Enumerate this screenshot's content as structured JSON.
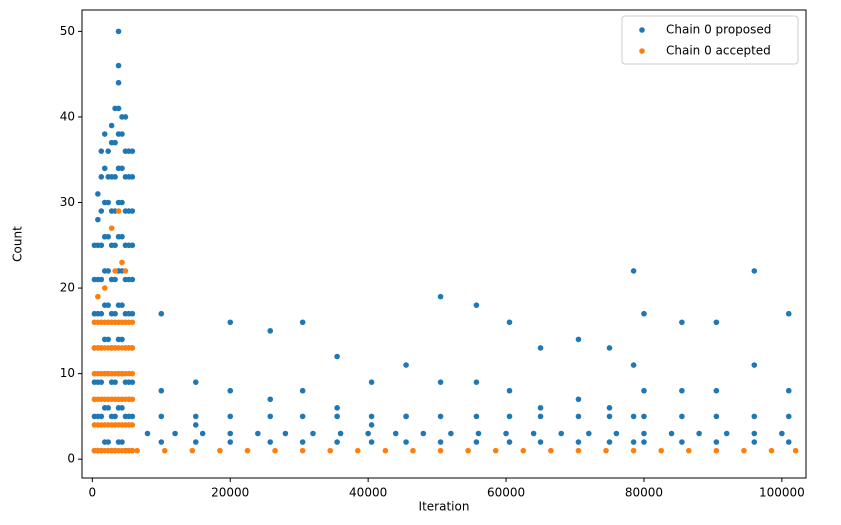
{
  "chart_data": {
    "type": "scatter",
    "xlabel": "Iteration",
    "ylabel": "Count",
    "xlim": [
      -1500,
      103500
    ],
    "ylim": [
      -2.2,
      52.5
    ],
    "xticks": [
      0,
      20000,
      40000,
      60000,
      80000,
      100000
    ],
    "yticks": [
      0,
      10,
      20,
      30,
      40,
      50
    ],
    "legend": "upper right",
    "series": [
      {
        "name": "Chain 0 proposed",
        "color": "#1f77b4",
        "x": [
          300,
          300,
          300,
          300,
          300,
          300,
          300,
          800,
          800,
          800,
          800,
          800,
          800,
          800,
          800,
          800,
          1300,
          1300,
          1300,
          1300,
          1300,
          1300,
          1300,
          1300,
          1300,
          1300,
          1800,
          1800,
          1800,
          1800,
          1800,
          1800,
          1800,
          1800,
          1800,
          1800,
          2300,
          2300,
          2300,
          2300,
          2300,
          2300,
          2300,
          2300,
          2300,
          2300,
          2800,
          2800,
          2800,
          2800,
          2800,
          2800,
          2800,
          2800,
          2800,
          2800,
          2800,
          3300,
          3300,
          3300,
          3300,
          3300,
          3300,
          3300,
          3300,
          3300,
          3300,
          3300,
          3800,
          3800,
          3800,
          3800,
          3800,
          3800,
          3800,
          3800,
          3800,
          3800,
          3800,
          3800,
          3800,
          3800,
          4300,
          4300,
          4300,
          4300,
          4300,
          4300,
          4300,
          4300,
          4300,
          4300,
          4300,
          4800,
          4800,
          4800,
          4800,
          4800,
          4800,
          4800,
          4800,
          4800,
          4800,
          4800,
          5300,
          5300,
          5300,
          5300,
          5300,
          5300,
          5300,
          5300,
          5300,
          5300,
          5800,
          5800,
          5800,
          5800,
          5800,
          5800,
          5800,
          5800,
          5800,
          5800,
          10000,
          10000,
          10000,
          10000,
          15000,
          15000,
          15000,
          15000,
          20000,
          20000,
          20000,
          20000,
          25800,
          25800,
          25800,
          25800,
          30500,
          30500,
          30500,
          30500,
          35500,
          35500,
          35500,
          35500,
          40500,
          40500,
          40500,
          40500,
          45500,
          45500,
          45500,
          45500,
          50500,
          50500,
          50500,
          50500,
          55700,
          55700,
          55700,
          55700,
          60500,
          60500,
          60500,
          60500,
          65000,
          65000,
          65000,
          65000,
          70500,
          70500,
          70500,
          70500,
          75000,
          75000,
          75000,
          75000,
          78500,
          78500,
          78500,
          78500,
          80000,
          80000,
          80000,
          80000,
          85500,
          85500,
          85500,
          85500,
          90500,
          90500,
          90500,
          90500,
          96000,
          96000,
          96000,
          96000,
          101000,
          101000,
          101000,
          101000,
          8000,
          12000,
          16000,
          20000,
          24000,
          28000,
          32000,
          36000,
          40000,
          44000,
          48000,
          52000,
          56000,
          60000,
          64000,
          68000,
          72000,
          76000,
          80000,
          84000,
          88000,
          92000,
          96000,
          100000
        ],
        "values": [
          1,
          5,
          9,
          13,
          17,
          21,
          25,
          1,
          5,
          9,
          13,
          17,
          21,
          25,
          28,
          31,
          1,
          5,
          9,
          13,
          17,
          21,
          25,
          29,
          33,
          36,
          2,
          6,
          10,
          14,
          18,
          22,
          26,
          30,
          34,
          38,
          2,
          6,
          10,
          14,
          18,
          22,
          26,
          30,
          33,
          36,
          1,
          5,
          9,
          13,
          17,
          21,
          25,
          29,
          33,
          37,
          39,
          1,
          5,
          9,
          13,
          17,
          21,
          25,
          29,
          33,
          37,
          41,
          2,
          6,
          10,
          14,
          18,
          22,
          26,
          30,
          34,
          38,
          41,
          44,
          46,
          50,
          2,
          6,
          10,
          14,
          18,
          22,
          26,
          30,
          34,
          38,
          40,
          1,
          5,
          9,
          13,
          17,
          21,
          25,
          29,
          33,
          36,
          40,
          1,
          5,
          9,
          13,
          17,
          21,
          25,
          29,
          33,
          36,
          1,
          5,
          9,
          13,
          17,
          21,
          25,
          29,
          33,
          36,
          2,
          5,
          8,
          17,
          2,
          5,
          4,
          9,
          2,
          5,
          8,
          16,
          2,
          5,
          7,
          15,
          2,
          5,
          8,
          16,
          2,
          5,
          6,
          12,
          2,
          5,
          4,
          9,
          2,
          5,
          5,
          11,
          2,
          5,
          9,
          19,
          2,
          5,
          9,
          18,
          2,
          5,
          8,
          16,
          2,
          5,
          6,
          13,
          2,
          5,
          7,
          14,
          2,
          5,
          6,
          13,
          2,
          5,
          11,
          22,
          2,
          5,
          8,
          17,
          2,
          5,
          8,
          16,
          2,
          5,
          8,
          16,
          2,
          5,
          11,
          22,
          2,
          5,
          8,
          17,
          3,
          3,
          3,
          3,
          3,
          3,
          3,
          3,
          3,
          3,
          3,
          3,
          3,
          3,
          3,
          3,
          3,
          3,
          3,
          3,
          3,
          3,
          3,
          3
        ]
      },
      {
        "name": "Chain 0 accepted",
        "color": "#ff7f0e",
        "x": [
          300,
          300,
          300,
          300,
          300,
          300,
          800,
          800,
          800,
          800,
          800,
          800,
          1300,
          1300,
          1300,
          1300,
          1300,
          1300,
          1800,
          1800,
          1800,
          1800,
          1800,
          1800,
          2300,
          2300,
          2300,
          2300,
          2300,
          2300,
          2800,
          2800,
          2800,
          2800,
          2800,
          2800,
          3300,
          3300,
          3300,
          3300,
          3300,
          3300,
          3800,
          3800,
          3800,
          3800,
          3800,
          3800,
          4300,
          4300,
          4300,
          4300,
          4300,
          4300,
          4800,
          4800,
          4800,
          4800,
          4800,
          4800,
          5300,
          5300,
          5300,
          5300,
          5300,
          5300,
          5800,
          5800,
          5800,
          5800,
          5800,
          5800,
          800,
          1800,
          2800,
          3300,
          3800,
          4300,
          4800,
          6500,
          10500,
          14500,
          18500,
          22500,
          26500,
          30500,
          34500,
          38500,
          42500,
          46500,
          50500,
          54500,
          58500,
          62500,
          66500,
          70500,
          74500,
          78500,
          82500,
          86500,
          90500,
          94500,
          98500,
          102000
        ],
        "values": [
          1,
          4,
          7,
          10,
          13,
          16,
          1,
          4,
          7,
          10,
          13,
          16,
          1,
          4,
          7,
          10,
          13,
          16,
          1,
          4,
          7,
          10,
          13,
          16,
          1,
          4,
          7,
          10,
          13,
          16,
          1,
          4,
          7,
          10,
          13,
          16,
          1,
          4,
          7,
          10,
          13,
          16,
          1,
          4,
          7,
          10,
          13,
          16,
          1,
          4,
          7,
          10,
          13,
          16,
          1,
          4,
          7,
          10,
          13,
          16,
          1,
          4,
          7,
          10,
          13,
          16,
          1,
          4,
          7,
          10,
          13,
          16,
          19,
          20,
          27,
          22,
          29,
          23,
          22,
          1,
          1,
          1,
          1,
          1,
          1,
          1,
          1,
          1,
          1,
          1,
          1,
          1,
          1,
          1,
          1,
          1,
          1,
          1,
          1,
          1,
          1,
          1,
          1,
          1
        ]
      }
    ]
  }
}
